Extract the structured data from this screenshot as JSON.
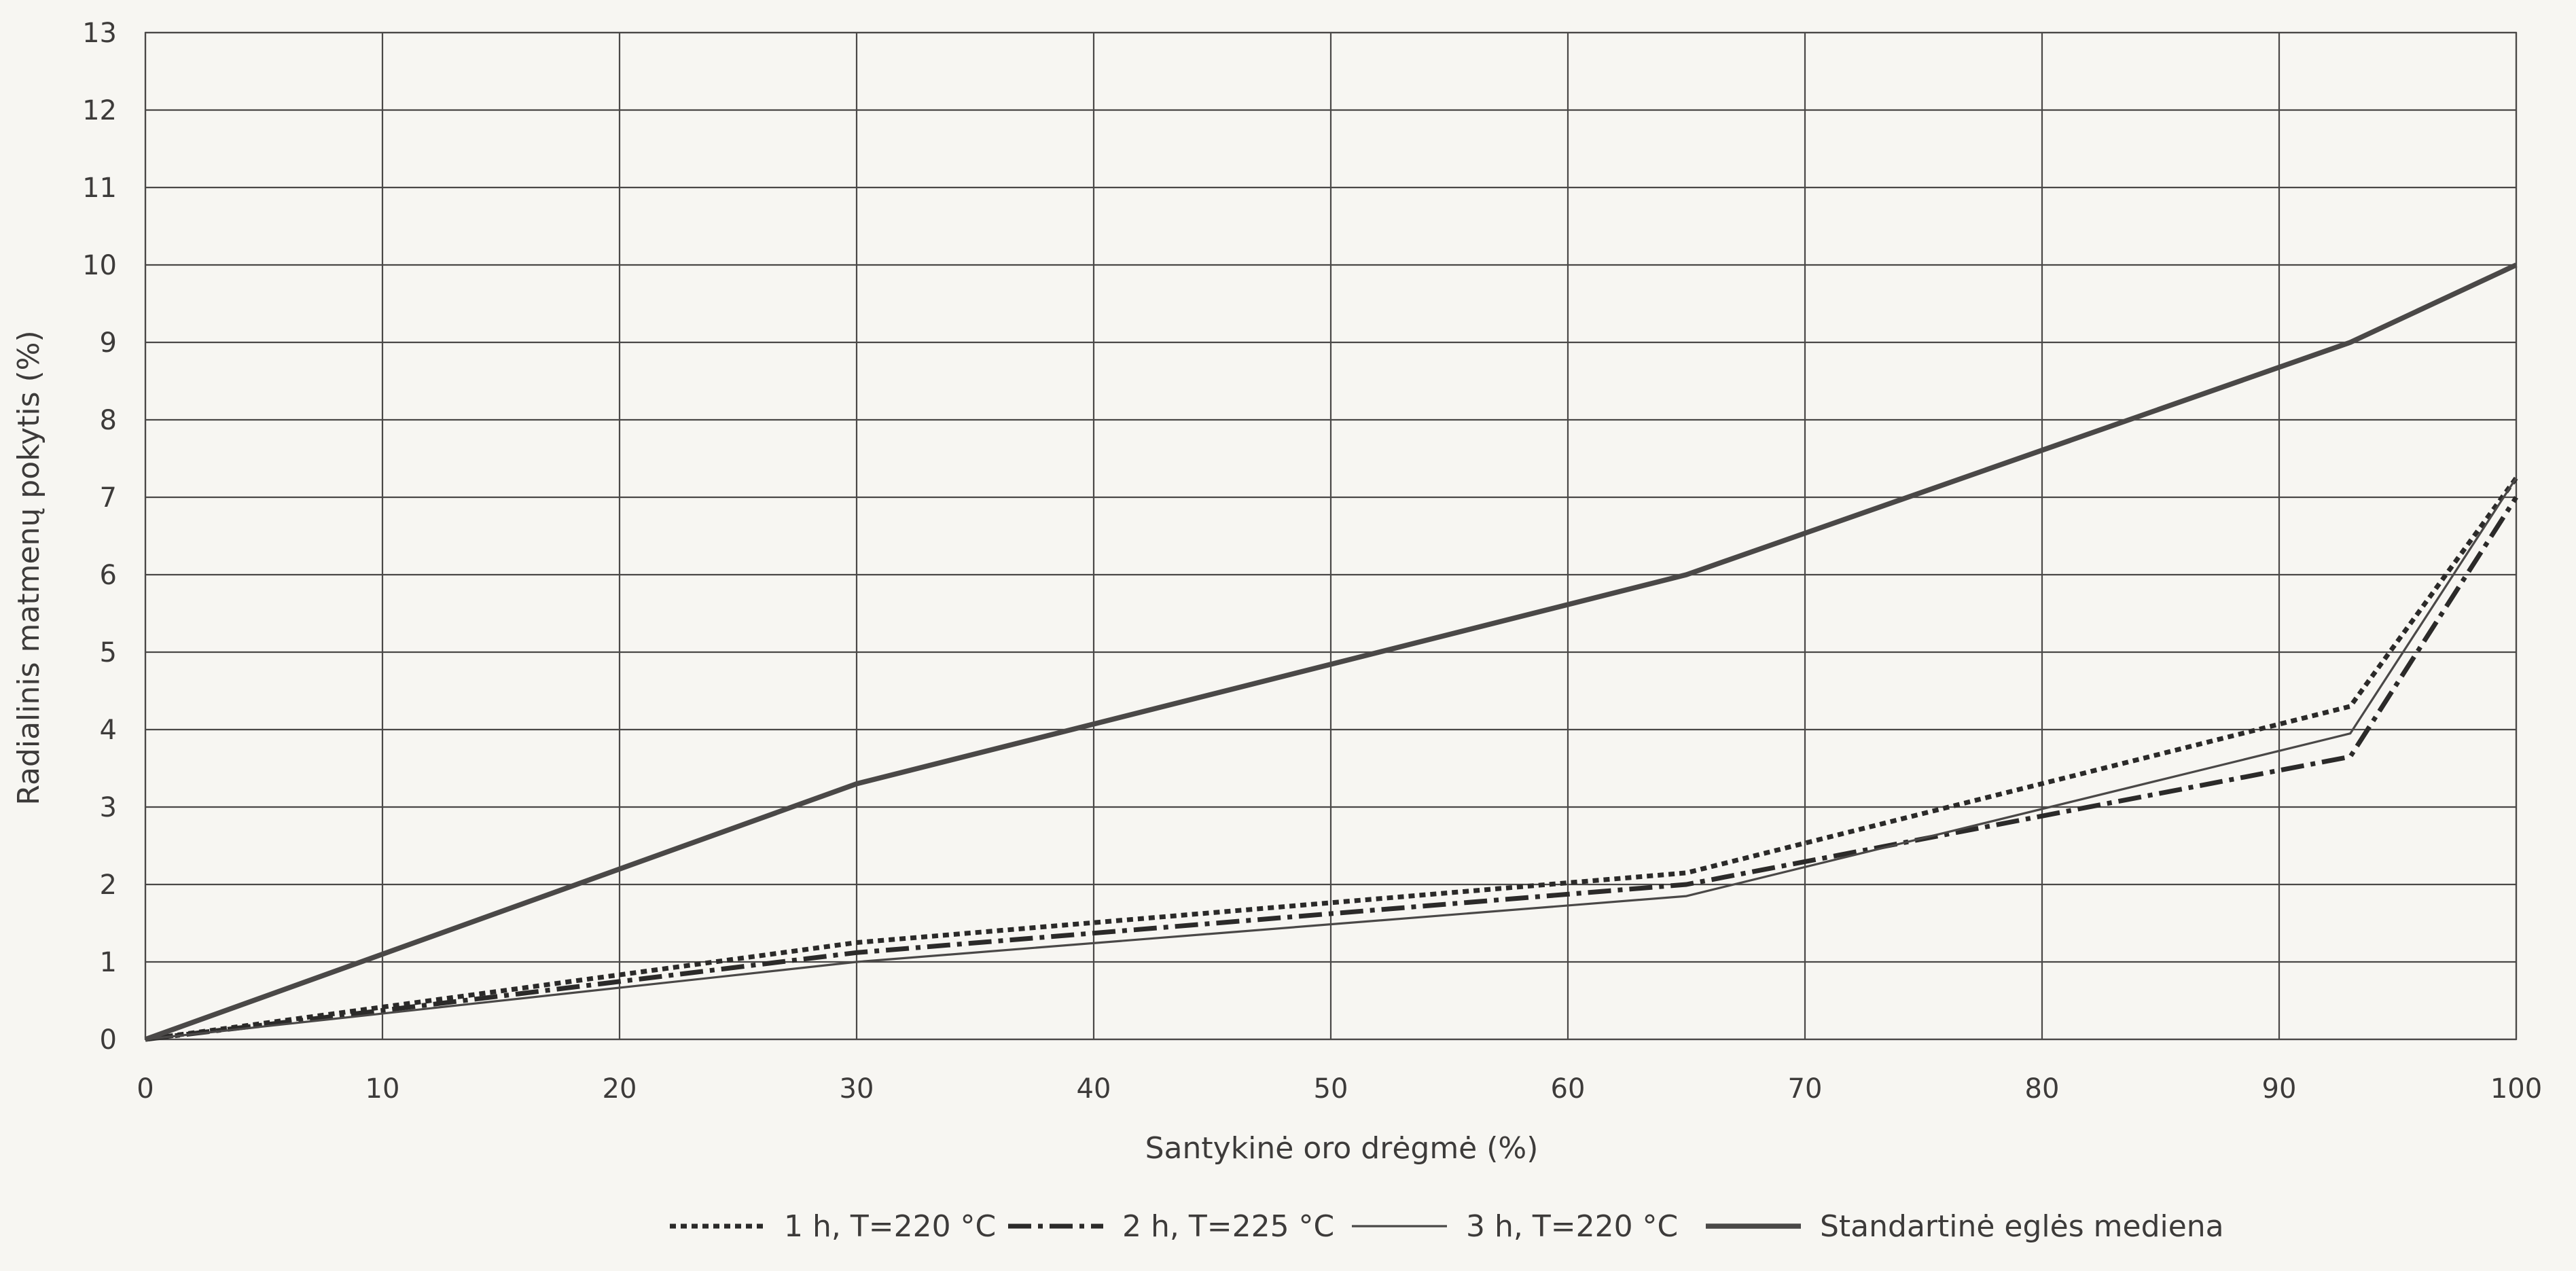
{
  "chart_data": {
    "type": "line",
    "xlabel": "Santykinė oro drėgmė (%)",
    "ylabel": "Radialinis matmenų pokytis (%)",
    "xlim": [
      0,
      100
    ],
    "ylim": [
      0,
      13
    ],
    "x_ticks": [
      0,
      10,
      20,
      30,
      40,
      50,
      60,
      70,
      80,
      90,
      100
    ],
    "y_ticks": [
      0,
      1,
      2,
      3,
      4,
      5,
      6,
      7,
      8,
      9,
      10,
      11,
      12,
      13
    ],
    "grid": true,
    "legend_position": "bottom",
    "x": [
      0,
      30,
      65,
      93,
      100
    ],
    "series": [
      {
        "name": "1 h, T=220 °C",
        "style": "dotted",
        "color": "#2b2a29",
        "values": [
          0,
          1.25,
          2.15,
          4.3,
          7.25
        ]
      },
      {
        "name": "2 h, T=225 °C",
        "style": "dash-dot",
        "color": "#2b2a29",
        "values": [
          0,
          1.12,
          2.0,
          3.65,
          7.0
        ]
      },
      {
        "name": "3 h, T=220 °C",
        "style": "thin-solid",
        "color": "#4a4847",
        "values": [
          0,
          1.0,
          1.85,
          3.95,
          7.25
        ]
      },
      {
        "name": "Standartinė eglės mediena",
        "style": "thick-solid",
        "color": "#4a4847",
        "values": [
          0,
          3.3,
          6.0,
          9.0,
          10.0
        ]
      }
    ]
  }
}
